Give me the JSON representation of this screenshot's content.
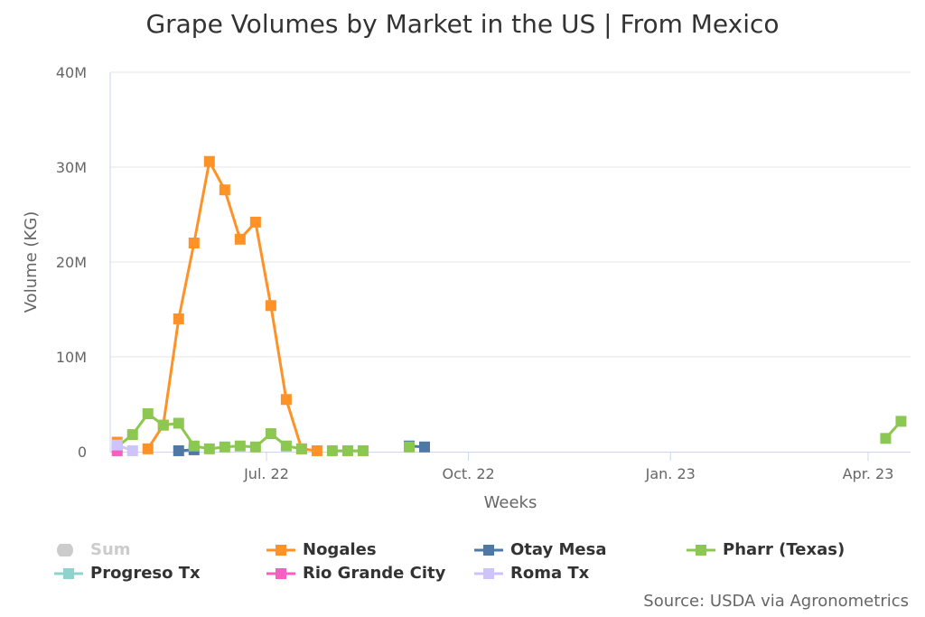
{
  "chart_data": {
    "type": "line",
    "title": "Grape Volumes by Market in the US | From Mexico",
    "xlabel": "Weeks",
    "ylabel": "Volume (KG)",
    "ylim": [
      0,
      40000000
    ],
    "yticks": [
      {
        "v": 0,
        "label": "0"
      },
      {
        "v": 10000000,
        "label": "10M"
      },
      {
        "v": 20000000,
        "label": "20M"
      },
      {
        "v": 30000000,
        "label": "30M"
      },
      {
        "v": 40000000,
        "label": "40M"
      }
    ],
    "xlim": [
      "2022-04-20",
      "2023-04-20"
    ],
    "xticks": [
      {
        "d": "2022-07-01",
        "label": "Jul. 22"
      },
      {
        "d": "2022-10-01",
        "label": "Oct. 22"
      },
      {
        "d": "2023-01-01",
        "label": "Jan. 23"
      },
      {
        "d": "2023-04-01",
        "label": "Apr. 23"
      }
    ],
    "grid": true,
    "legend_position": "bottom",
    "series": [
      {
        "name": "Sum",
        "color": "#cccccc",
        "visible": false,
        "marker": "circle",
        "points": []
      },
      {
        "name": "Nogales",
        "color": "#ff9226",
        "visible": true,
        "marker": "square",
        "points": [
          [
            "2022-04-24",
            1000000
          ],
          [
            "2022-05-08",
            300000
          ],
          [
            "2022-05-15",
            2800000
          ],
          [
            "2022-05-22",
            14000000
          ],
          [
            "2022-05-29",
            22000000
          ],
          [
            "2022-06-05",
            30600000
          ],
          [
            "2022-06-12",
            27600000
          ],
          [
            "2022-06-19",
            22400000
          ],
          [
            "2022-06-26",
            24200000
          ],
          [
            "2022-07-03",
            15400000
          ],
          [
            "2022-07-10",
            5500000
          ],
          [
            "2022-07-17",
            300000
          ],
          [
            "2022-07-24",
            100000
          ]
        ]
      },
      {
        "name": "Otay Mesa",
        "color": "#4e79a7",
        "visible": true,
        "marker": "square",
        "points": [
          [
            "2022-05-22",
            100000
          ],
          [
            "2022-05-29",
            200000
          ],
          [
            "2022-09-04",
            600000
          ],
          [
            "2022-09-11",
            500000
          ]
        ]
      },
      {
        "name": "Pharr (Texas)",
        "color": "#8cc751",
        "visible": true,
        "marker": "square",
        "points": [
          [
            "2022-04-24",
            500000
          ],
          [
            "2022-05-01",
            1800000
          ],
          [
            "2022-05-08",
            4000000
          ],
          [
            "2022-05-15",
            2800000
          ],
          [
            "2022-05-22",
            3000000
          ],
          [
            "2022-05-29",
            600000
          ],
          [
            "2022-06-05",
            300000
          ],
          [
            "2022-06-12",
            500000
          ],
          [
            "2022-06-19",
            600000
          ],
          [
            "2022-06-26",
            500000
          ],
          [
            "2022-07-03",
            1900000
          ],
          [
            "2022-07-10",
            600000
          ],
          [
            "2022-07-17",
            300000
          ],
          [
            "2022-07-31",
            100000
          ],
          [
            "2022-08-07",
            100000
          ],
          [
            "2022-08-14",
            100000
          ],
          [
            "2022-09-04",
            500000
          ],
          [
            "2023-04-09",
            1400000
          ],
          [
            "2023-04-16",
            3200000
          ]
        ]
      },
      {
        "name": "Progreso Tx",
        "color": "#8fd3cf",
        "visible": true,
        "marker": "square",
        "points": []
      },
      {
        "name": "Rio Grande City",
        "color": "#f55fc0",
        "visible": true,
        "marker": "square",
        "points": [
          [
            "2022-04-24",
            100000
          ]
        ]
      },
      {
        "name": "Roma Tx",
        "color": "#cfc3fb",
        "visible": true,
        "marker": "square",
        "points": [
          [
            "2022-04-24",
            700000
          ],
          [
            "2022-05-01",
            100000
          ]
        ]
      }
    ]
  },
  "source": "Source: USDA via Agronometrics"
}
